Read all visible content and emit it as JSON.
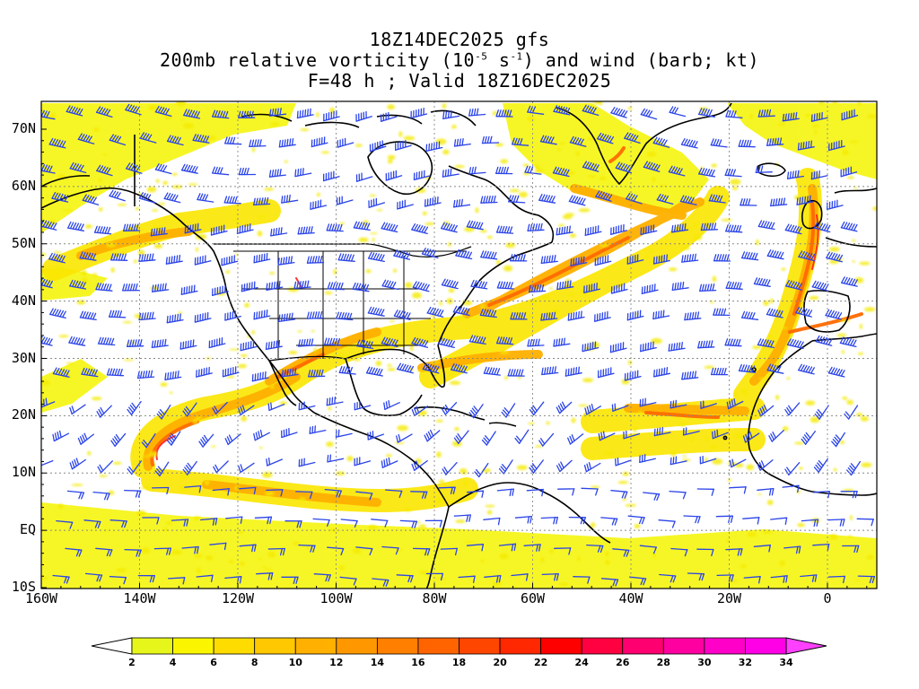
{
  "title": {
    "line1": "18Z14DEC2025 gfs",
    "line2_prefix": "200mb relative vorticity (10",
    "line2_exp1": "-5",
    "line2_mid": " s",
    "line2_exp2": "-1",
    "line2_suffix": ") and wind (barb; kt)",
    "line3": "F=48 h ; Valid 18Z16DEC2025"
  },
  "lat_labels": [
    "70N",
    "60N",
    "50N",
    "40N",
    "30N",
    "20N",
    "10N",
    "EQ",
    "10S"
  ],
  "lon_labels": [
    "160W",
    "140W",
    "120W",
    "100W",
    "80W",
    "60W",
    "40W",
    "20W",
    "0"
  ],
  "colorbar": {
    "labels": [
      "2",
      "4",
      "6",
      "8",
      "10",
      "12",
      "14",
      "16",
      "18",
      "20",
      "22",
      "24",
      "26",
      "28",
      "30",
      "32",
      "34"
    ],
    "colors": [
      "#e6f61a",
      "#fbf600",
      "#ffdc00",
      "#ffc800",
      "#ffb000",
      "#ff9800",
      "#ff8000",
      "#ff6400",
      "#ff4600",
      "#ff2800",
      "#ff0000",
      "#ff0040",
      "#ff0070",
      "#ff00a0",
      "#ff00c8",
      "#ff00e6",
      "#ff40ff"
    ],
    "under_color": "#ffffff",
    "over_color": "#ff40ff"
  },
  "map": {
    "barb_color": "#2b44e8",
    "coast_color": "#000000",
    "grid_color": "#888888"
  }
}
